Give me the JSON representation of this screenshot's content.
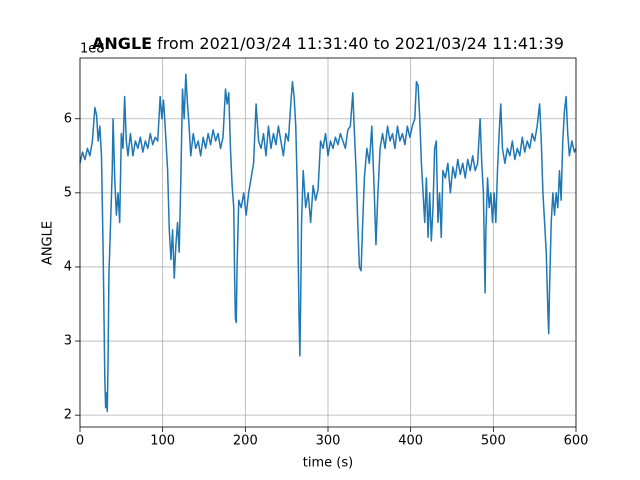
{
  "chart_data": {
    "type": "line",
    "title": {
      "bold": "ANGLE",
      "rest": "from 2021/03/24 11:31:40 to 2021/03/24 11:41:39"
    },
    "x_label": "time (s)",
    "y_label": "ANGLE",
    "y_offset_text": "1e8",
    "x": [
      0,
      3,
      6,
      9,
      12,
      15,
      18,
      20,
      22,
      24,
      26,
      28,
      30,
      31,
      32,
      33,
      34,
      35,
      37,
      39,
      40,
      42,
      44,
      46,
      48,
      50,
      52,
      54,
      56,
      58,
      61,
      64,
      67,
      70,
      73,
      76,
      79,
      82,
      85,
      88,
      91,
      94,
      97,
      99,
      101,
      103,
      106,
      108,
      110,
      112,
      114,
      116,
      118,
      120,
      122,
      124,
      126,
      128,
      130,
      132,
      134,
      137,
      140,
      143,
      146,
      149,
      152,
      155,
      158,
      161,
      164,
      167,
      170,
      173,
      176,
      178,
      180,
      182,
      184,
      186,
      187,
      188,
      189,
      190,
      192,
      195,
      198,
      201,
      204,
      207,
      210,
      213,
      216,
      219,
      222,
      225,
      228,
      231,
      234,
      237,
      240,
      243,
      246,
      249,
      252,
      255,
      257,
      259,
      261,
      263,
      264,
      265,
      266,
      267,
      268,
      270,
      273,
      276,
      279,
      282,
      285,
      288,
      291,
      294,
      297,
      300,
      303,
      306,
      309,
      312,
      315,
      318,
      321,
      324,
      327,
      330,
      332,
      334,
      336,
      338,
      340,
      342,
      344,
      347,
      350,
      353,
      356,
      358,
      360,
      363,
      366,
      369,
      372,
      375,
      378,
      381,
      384,
      387,
      390,
      393,
      396,
      399,
      402,
      405,
      407,
      409,
      411,
      413,
      415,
      417,
      419,
      421,
      423,
      425,
      427,
      429,
      431,
      433,
      435,
      437,
      439,
      442,
      445,
      448,
      451,
      454,
      457,
      460,
      463,
      466,
      469,
      472,
      475,
      478,
      481,
      484,
      486,
      488,
      489,
      490,
      491,
      493,
      495,
      497,
      499,
      501,
      503,
      505,
      507,
      509,
      511,
      514,
      517,
      520,
      523,
      526,
      529,
      532,
      535,
      538,
      541,
      544,
      547,
      550,
      553,
      556,
      558,
      560,
      562,
      564,
      566,
      567,
      568,
      570,
      572,
      574,
      576,
      578,
      580,
      582,
      584,
      586,
      588,
      590,
      592,
      595,
      598,
      600
    ],
    "series": [
      {
        "color": "#1f77b4",
        "values": [
          5.4,
          5.55,
          5.45,
          5.6,
          5.5,
          5.7,
          6.15,
          6.05,
          5.7,
          5.9,
          5.5,
          4.2,
          2.5,
          2.1,
          2.3,
          2.05,
          2.8,
          3.9,
          4.6,
          5.3,
          6.0,
          5.2,
          4.7,
          5.0,
          4.6,
          5.8,
          5.6,
          6.3,
          5.7,
          5.5,
          5.8,
          5.5,
          5.7,
          5.6,
          5.75,
          5.55,
          5.7,
          5.6,
          5.8,
          5.65,
          5.75,
          5.7,
          6.3,
          6.0,
          6.25,
          5.9,
          5.3,
          4.5,
          4.1,
          4.5,
          3.85,
          4.3,
          4.6,
          4.2,
          5.2,
          6.4,
          6.0,
          6.6,
          6.2,
          5.9,
          5.5,
          5.8,
          5.6,
          5.7,
          5.5,
          5.75,
          5.6,
          5.8,
          5.65,
          5.85,
          5.7,
          5.8,
          5.6,
          5.75,
          6.4,
          6.2,
          6.35,
          5.6,
          5.1,
          4.8,
          3.9,
          3.3,
          3.25,
          4.0,
          4.9,
          4.8,
          5.0,
          4.7,
          5.0,
          5.2,
          5.4,
          6.2,
          5.7,
          5.6,
          5.8,
          5.5,
          5.9,
          5.6,
          5.8,
          5.65,
          5.9,
          5.7,
          5.5,
          5.8,
          5.7,
          6.2,
          6.5,
          6.3,
          5.9,
          5.0,
          4.1,
          3.3,
          2.8,
          3.6,
          4.6,
          5.3,
          4.8,
          5.0,
          4.6,
          5.1,
          4.9,
          5.05,
          5.7,
          5.6,
          5.8,
          5.5,
          5.7,
          5.6,
          5.75,
          5.65,
          5.8,
          5.7,
          5.6,
          5.85,
          5.9,
          6.35,
          5.8,
          5.3,
          4.6,
          4.0,
          3.95,
          4.6,
          5.2,
          5.6,
          5.4,
          5.9,
          5.0,
          4.3,
          4.9,
          5.6,
          5.8,
          5.6,
          5.9,
          5.7,
          5.8,
          5.6,
          5.9,
          5.7,
          5.8,
          5.65,
          5.9,
          5.75,
          5.9,
          6.0,
          6.5,
          6.45,
          6.0,
          5.4,
          5.0,
          4.6,
          5.2,
          4.4,
          5.0,
          4.35,
          4.8,
          5.6,
          5.7,
          4.6,
          5.0,
          4.4,
          5.3,
          5.2,
          5.4,
          5.0,
          5.35,
          5.2,
          5.45,
          5.25,
          5.4,
          5.2,
          5.45,
          5.3,
          5.5,
          5.3,
          5.4,
          6.0,
          5.4,
          5.0,
          4.3,
          3.65,
          4.5,
          5.2,
          4.8,
          5.0,
          4.6,
          5.0,
          4.6,
          5.3,
          5.8,
          6.2,
          5.6,
          5.4,
          5.6,
          5.5,
          5.7,
          5.45,
          5.6,
          5.5,
          5.75,
          5.55,
          5.7,
          5.6,
          5.8,
          5.7,
          5.9,
          6.2,
          5.7,
          5.0,
          4.6,
          4.2,
          3.4,
          3.1,
          3.7,
          4.6,
          5.0,
          4.7,
          5.0,
          4.8,
          5.3,
          4.9,
          5.7,
          6.1,
          6.3,
          5.8,
          5.5,
          5.7,
          5.55,
          5.6
        ]
      }
    ],
    "xlim": [
      0,
      600
    ],
    "xticks": [
      0,
      100,
      200,
      300,
      400,
      500,
      600
    ],
    "ylim": [
      1.84,
      6.82
    ],
    "yticks": [
      2,
      3,
      4,
      5,
      6
    ],
    "grid": true
  }
}
